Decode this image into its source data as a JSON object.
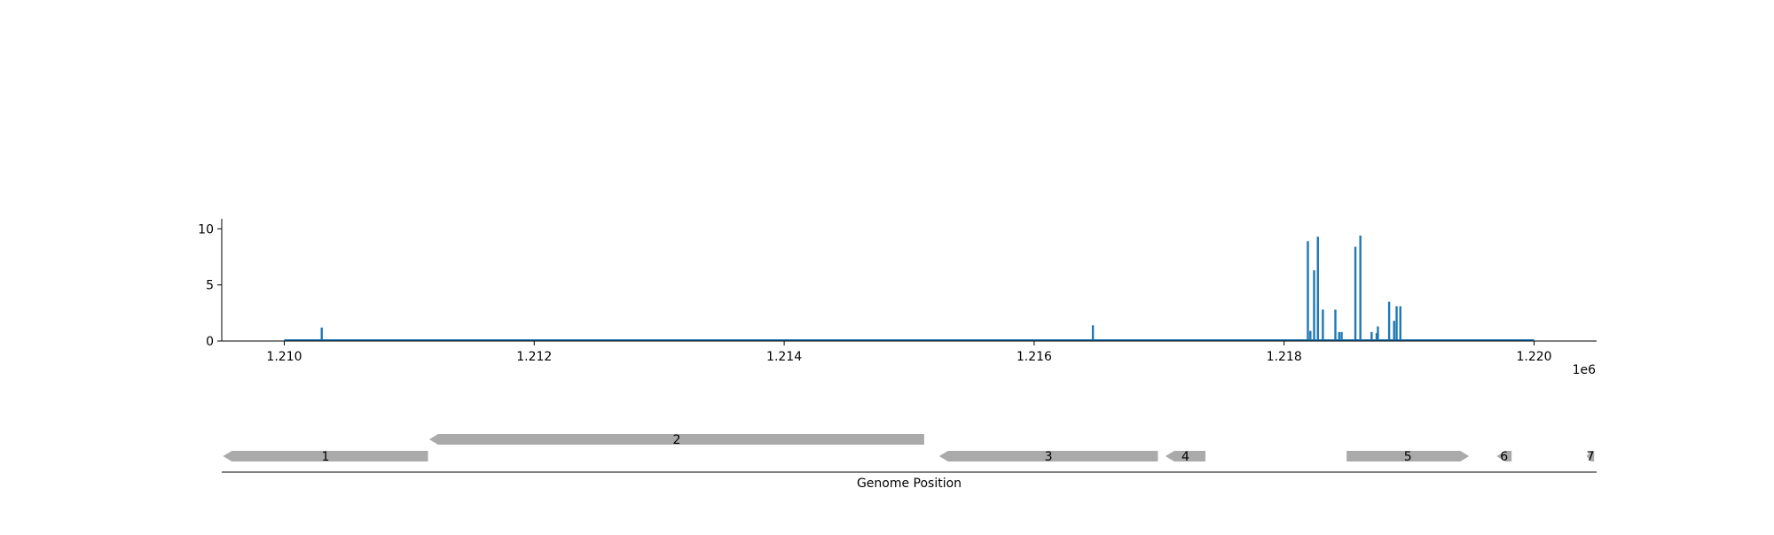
{
  "chart_data": [
    {
      "type": "bar",
      "title": "",
      "xlabel": "",
      "ylabel": "",
      "x_offset_label": "1e6",
      "xlim": [
        1209500,
        1220500
      ],
      "ylim": [
        0,
        10.5
      ],
      "xticks": [
        1210000,
        1212000,
        1214000,
        1216000,
        1218000,
        1220000
      ],
      "xtick_labels": [
        "1.210",
        "1.212",
        "1.214",
        "1.216",
        "1.218",
        "1.220"
      ],
      "yticks": [
        0,
        5,
        10
      ],
      "ytick_labels": [
        "0",
        "5",
        "10"
      ],
      "baseline_range": [
        1210000,
        1220000
      ],
      "series": [
        {
          "color": "#1f77b4",
          "x": [
            1210300,
            1216470,
            1218190,
            1218210,
            1218240,
            1218270,
            1218310,
            1218410,
            1218440,
            1218460,
            1218570,
            1218610,
            1218700,
            1218740,
            1218750,
            1218840,
            1218880,
            1218900,
            1218930
          ],
          "values": [
            1.2,
            1.4,
            8.9,
            0.9,
            6.3,
            9.3,
            2.8,
            2.8,
            0.8,
            0.8,
            8.4,
            9.4,
            0.8,
            0.7,
            1.3,
            3.5,
            1.8,
            3.1,
            3.1
          ]
        }
      ],
      "grid": false,
      "legend": "none"
    },
    {
      "type": "gene-map",
      "xlabel": "Genome Position",
      "xlim": [
        1209500,
        1220500
      ],
      "feature_color": "#aaaaaa",
      "features": [
        {
          "label": "1",
          "start": 1209510,
          "end": 1211150,
          "strand": "-",
          "track": 1
        },
        {
          "label": "2",
          "start": 1211160,
          "end": 1215120,
          "strand": "-",
          "track": 0
        },
        {
          "label": "3",
          "start": 1215240,
          "end": 1216990,
          "strand": "-",
          "track": 1
        },
        {
          "label": "4",
          "start": 1217050,
          "end": 1217370,
          "strand": "-",
          "track": 1
        },
        {
          "label": "5",
          "start": 1218500,
          "end": 1219480,
          "strand": "+",
          "track": 1
        },
        {
          "label": "6",
          "start": 1219700,
          "end": 1219820,
          "strand": "-",
          "track": 1
        },
        {
          "label": "7",
          "start": 1220420,
          "end": 1220480,
          "strand": "-",
          "track": 1
        }
      ]
    }
  ]
}
